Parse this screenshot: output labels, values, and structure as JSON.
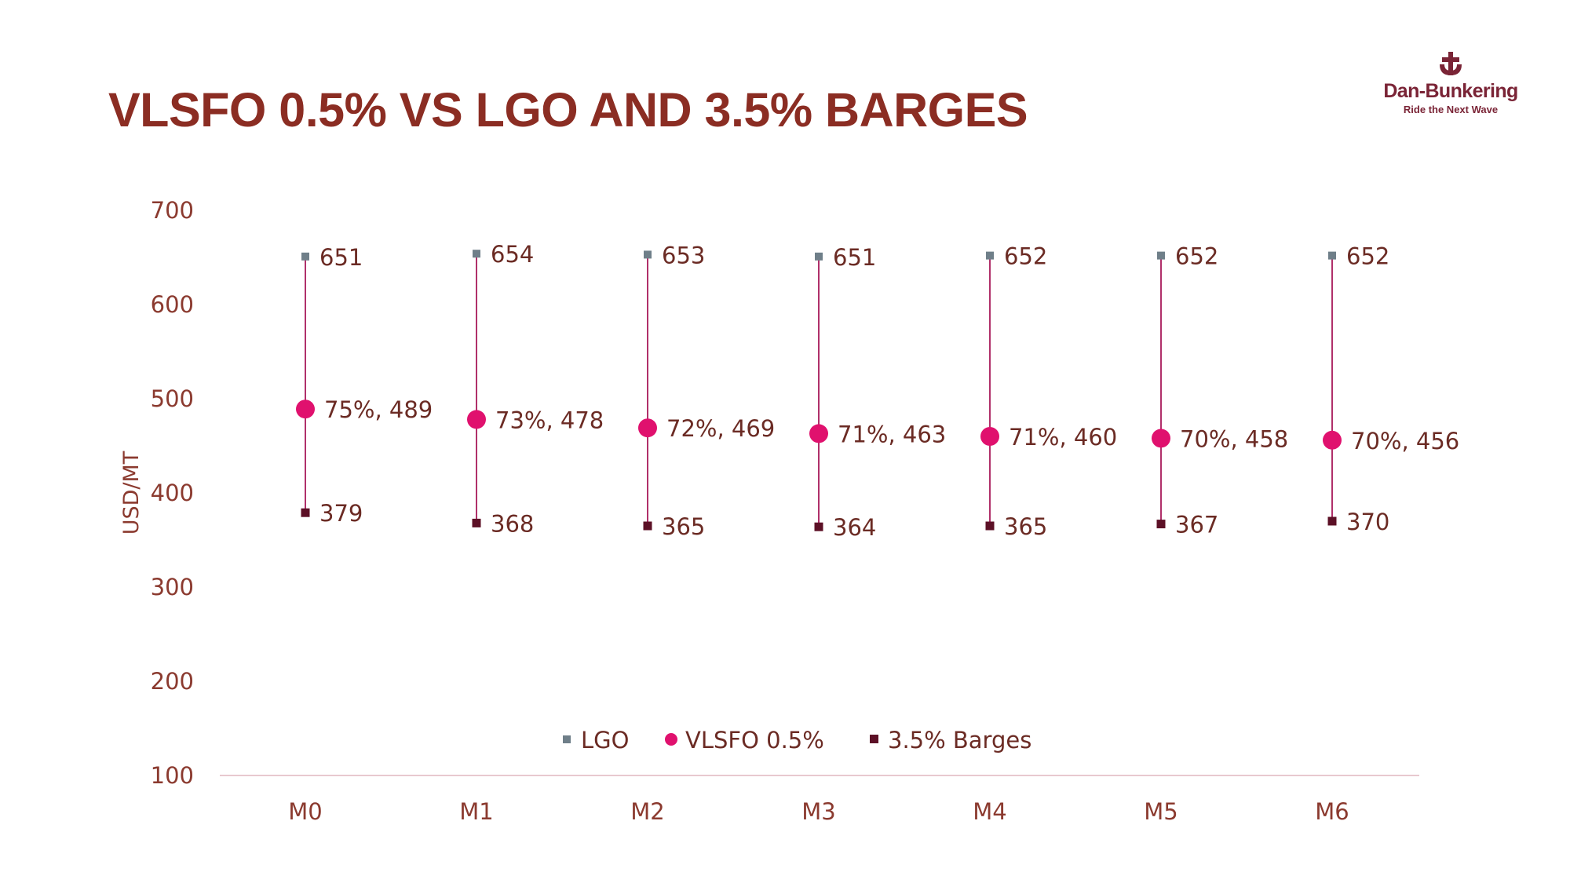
{
  "header": {
    "title": "VLSFO 0.5% VS LGO AND 3.5% BARGES"
  },
  "logo": {
    "name": "Dan-Bunkering",
    "tagline": "Ride the Next Wave"
  },
  "colors": {
    "title": "#8b2d23",
    "lgo": "#6f7f89",
    "vlsfo": "#e0116e",
    "barges": "#5c1026",
    "range_line": "#b0306a",
    "axis_line": "#e8c9cf"
  },
  "chart_data": {
    "type": "scatter",
    "title": "VLSFO 0.5% VS LGO AND 3.5% BARGES",
    "xlabel": "",
    "ylabel": "USD/MT",
    "ylim": [
      100,
      700
    ],
    "yticks": [
      700,
      600,
      500,
      400,
      300,
      200,
      100
    ],
    "categories": [
      "M0",
      "M1",
      "M2",
      "M3",
      "M4",
      "M5",
      "M6"
    ],
    "series": [
      {
        "name": "LGO",
        "marker": "square",
        "values": [
          651,
          654,
          653,
          651,
          652,
          652,
          652
        ]
      },
      {
        "name": "VLSFO 0.5%",
        "marker": "circle",
        "values": [
          489,
          478,
          469,
          463,
          460,
          458,
          456
        ],
        "ratio_labels": [
          "75%",
          "73%",
          "72%",
          "71%",
          "71%",
          "70%",
          "70%"
        ]
      },
      {
        "name": "3.5% Barges",
        "marker": "square",
        "values": [
          379,
          368,
          365,
          364,
          365,
          367,
          370
        ]
      }
    ],
    "legend": [
      "LGO",
      "VLSFO 0.5%",
      "3.5% Barges"
    ],
    "legend_position": "bottom-center"
  }
}
